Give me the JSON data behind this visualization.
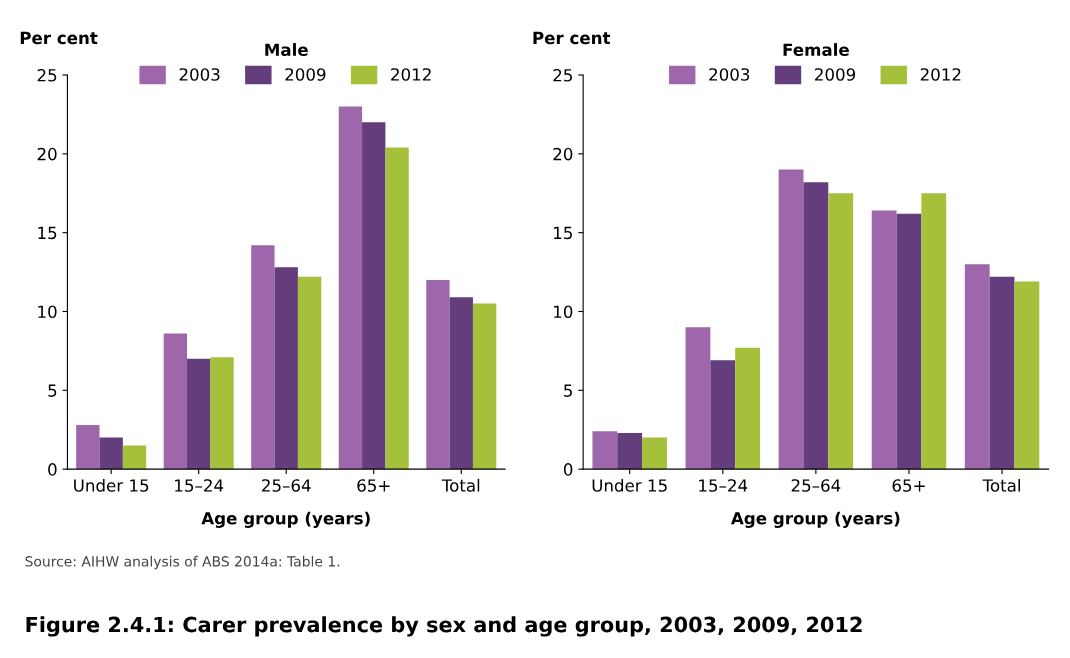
{
  "chart_data": [
    {
      "type": "bar",
      "title": "Male",
      "ylabel": "Per cent",
      "xlabel": "Age group (years)",
      "categories": [
        "Under 15",
        "15–24",
        "25–64",
        "65+",
        "Total"
      ],
      "series": [
        {
          "name": "2003",
          "color": "#9e67ab",
          "values": [
            2.8,
            8.6,
            14.2,
            23.0,
            12.0
          ]
        },
        {
          "name": "2009",
          "color": "#633d7c",
          "values": [
            2.0,
            7.0,
            12.8,
            22.0,
            10.9
          ]
        },
        {
          "name": "2012",
          "color": "#a5c03a",
          "values": [
            1.5,
            7.1,
            12.2,
            20.4,
            10.5
          ]
        }
      ],
      "ylim": [
        0,
        25
      ],
      "yticks": [
        0,
        5,
        10,
        15,
        20,
        25
      ],
      "legend": "top",
      "annotations": [
        "Source: AIHW analysis of ABS 2014a: Table 1.",
        "Figure 2.4.1: Carer prevalence by sex and age group, 2003, 2009, 2012"
      ]
    },
    {
      "type": "bar",
      "title": "Female",
      "ylabel": "Per cent",
      "xlabel": "Age group (years)",
      "categories": [
        "Under 15",
        "15–24",
        "25–64",
        "65+",
        "Total"
      ],
      "series": [
        {
          "name": "2003",
          "color": "#9e67ab",
          "values": [
            2.4,
            9.0,
            19.0,
            16.4,
            13.0
          ]
        },
        {
          "name": "2009",
          "color": "#633d7c",
          "values": [
            2.3,
            6.9,
            18.2,
            16.2,
            12.2
          ]
        },
        {
          "name": "2012",
          "color": "#a5c03a",
          "values": [
            2.0,
            7.7,
            17.5,
            17.5,
            11.9
          ]
        }
      ],
      "ylim": [
        0,
        25
      ],
      "yticks": [
        0,
        5,
        10,
        15,
        20,
        25
      ],
      "legend": "top"
    }
  ]
}
